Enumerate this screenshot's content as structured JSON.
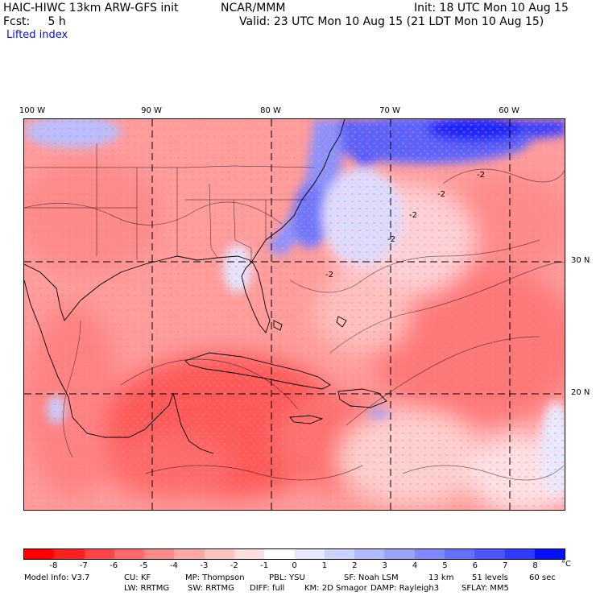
{
  "header": {
    "line1_left": "HAIC-HIWC 13km ARW-GFS init",
    "line1_mid": "NCAR/MMM",
    "line1_right": "Init: 18 UTC Mon 10 Aug 15",
    "line2_left": "Fcst:     5 h",
    "line2_right": "Valid: 23 UTC Mon 10 Aug 15 (21 LDT Mon 10 Aug 15)",
    "field_name": "Lifted index"
  },
  "axes": {
    "lon_labels": [
      "100 W",
      "90 W",
      "80 W",
      "70 W",
      "60 W"
    ],
    "lat_labels": [
      "30 N",
      "20 N"
    ]
  },
  "contour_labels": [
    "-2",
    "-2",
    "-2",
    "-2",
    "-2"
  ],
  "colorbar": {
    "colors": [
      "#ff0000",
      "#ff2020",
      "#ff4545",
      "#ff6a6a",
      "#ff8a8a",
      "#ffa8a8",
      "#ffc3c3",
      "#ffdede",
      "#ffffff",
      "#e6e8ff",
      "#ccd2ff",
      "#b2b9ff",
      "#9aa2ff",
      "#7f88ff",
      "#6570ff",
      "#4a55ff",
      "#2f3aff",
      "#0010ff"
    ],
    "labels": [
      "-8",
      "-7",
      "-6",
      "-5",
      "-4",
      "-3",
      "-2",
      "-1",
      "0",
      "1",
      "2",
      "3",
      "4",
      "5",
      "6",
      "7",
      "8"
    ],
    "unit": "°C"
  },
  "model_info": {
    "line1": [
      "Model Info: V3.7",
      "CU: KF",
      "MP: Thompson",
      "PBL: YSU",
      "SF: Noah LSM",
      "13 km",
      "51 levels",
      "60 sec"
    ],
    "line2": [
      "LW: RRTMG",
      "SW: RRTMG",
      "DIFF: full",
      "KM: 2D Smagor",
      "DAMP: Rayleigh3",
      "SFLAY: MM5"
    ]
  }
}
